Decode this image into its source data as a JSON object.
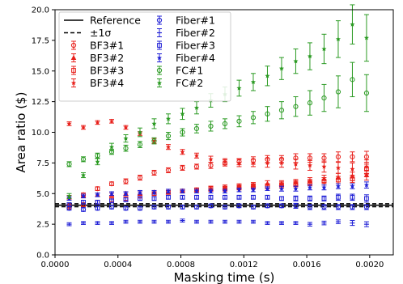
{
  "chart_data": {
    "type": "scatter",
    "xlabel": "Masking time (s)",
    "ylabel": "Area ratio ($)",
    "xlim": [
      0.0,
      0.00215
    ],
    "ylim": [
      0.0,
      20.0
    ],
    "xticks": [
      "0.0000",
      "0.0004",
      "0.0008",
      "0.0012",
      "0.0016",
      "0.0020"
    ],
    "xtick_values": [
      0.0,
      0.0004,
      0.0008,
      0.0012,
      0.0016,
      0.002
    ],
    "yticks": [
      "0.0",
      "2.5",
      "5.0",
      "7.5",
      "10.0",
      "12.5",
      "15.0",
      "17.5",
      "20.0"
    ],
    "ytick_values": [
      0.0,
      2.5,
      5.0,
      7.5,
      10.0,
      12.5,
      15.0,
      17.5,
      20.0
    ],
    "x": [
      9e-05,
      0.00018,
      0.00027,
      0.00036,
      0.00045,
      0.00054,
      0.00063,
      0.00072,
      0.00081,
      0.0009,
      0.00099,
      0.00108,
      0.00117,
      0.00126,
      0.00135,
      0.00144,
      0.00153,
      0.00162,
      0.00171,
      0.0018,
      0.00189,
      0.00198
    ],
    "reference": {
      "label": "Reference",
      "value": 4.05,
      "sigma_label": "±1σ",
      "sigma": 0.12
    },
    "series": [
      {
        "name": "BF3#1",
        "color": "#e8211c",
        "marker": "circle",
        "values": [
          4.0,
          4.9,
          5.4,
          5.8,
          6.0,
          6.3,
          6.7,
          6.9,
          7.1,
          7.2,
          7.3,
          7.5,
          7.6,
          7.7,
          7.8,
          7.8,
          7.9,
          7.9,
          7.9,
          8.0,
          8.0,
          8.0
        ],
        "errors": [
          0.15,
          0.15,
          0.15,
          0.15,
          0.2,
          0.2,
          0.2,
          0.2,
          0.2,
          0.2,
          0.25,
          0.25,
          0.25,
          0.3,
          0.3,
          0.3,
          0.35,
          0.35,
          0.35,
          0.4,
          0.4,
          0.45
        ]
      },
      {
        "name": "BF3#2",
        "color": "#e8211c",
        "marker": "triangle",
        "values": [
          4.7,
          4.8,
          4.9,
          4.9,
          5.0,
          5.0,
          5.1,
          5.1,
          5.2,
          5.3,
          5.4,
          5.5,
          5.6,
          5.7,
          5.8,
          5.8,
          5.9,
          6.0,
          6.2,
          6.3,
          6.4,
          6.5
        ],
        "errors": [
          0.15,
          0.15,
          0.15,
          0.15,
          0.15,
          0.15,
          0.15,
          0.15,
          0.15,
          0.15,
          0.2,
          0.2,
          0.2,
          0.2,
          0.25,
          0.25,
          0.25,
          0.3,
          0.3,
          0.35,
          0.35,
          0.4
        ]
      },
      {
        "name": "BF3#3",
        "color": "#e8211c",
        "marker": "square",
        "values": [
          3.9,
          4.1,
          4.3,
          4.5,
          4.6,
          4.8,
          5.0,
          5.1,
          5.2,
          5.3,
          5.4,
          5.4,
          5.5,
          5.6,
          5.6,
          5.7,
          5.8,
          5.9,
          6.0,
          6.1,
          6.2,
          7.0
        ],
        "errors": [
          0.15,
          0.15,
          0.15,
          0.15,
          0.15,
          0.15,
          0.15,
          0.15,
          0.15,
          0.15,
          0.2,
          0.2,
          0.2,
          0.2,
          0.2,
          0.25,
          0.25,
          0.25,
          0.3,
          0.3,
          0.3,
          0.4
        ]
      },
      {
        "name": "BF3#4",
        "color": "#e8211c",
        "marker": "star",
        "values": [
          10.7,
          10.4,
          10.8,
          10.9,
          10.4,
          9.9,
          9.3,
          8.8,
          8.4,
          8.1,
          7.8,
          7.6,
          7.5,
          7.5,
          7.5,
          7.5,
          7.4,
          7.3,
          7.2,
          7.1,
          7.0,
          7.2
        ],
        "errors": [
          0.15,
          0.15,
          0.15,
          0.15,
          0.15,
          0.15,
          0.2,
          0.2,
          0.2,
          0.2,
          0.25,
          0.25,
          0.3,
          0.3,
          0.35,
          0.35,
          0.4,
          0.4,
          0.45,
          0.45,
          0.5,
          0.55
        ]
      },
      {
        "name": "Fiber#1",
        "color": "#1f1fd6",
        "marker": "circle",
        "values": [
          3.8,
          3.7,
          3.8,
          3.9,
          3.8,
          3.8,
          3.9,
          3.9,
          3.9,
          3.9,
          4.0,
          3.9,
          4.0,
          3.9,
          4.0,
          4.0,
          4.0,
          3.9,
          3.9,
          3.9,
          3.9,
          3.9
        ],
        "errors": [
          0.15,
          0.15,
          0.15,
          0.15,
          0.15,
          0.15,
          0.15,
          0.15,
          0.15,
          0.15,
          0.15,
          0.15,
          0.15,
          0.15,
          0.15,
          0.15,
          0.2,
          0.2,
          0.2,
          0.2,
          0.2,
          0.2
        ]
      },
      {
        "name": "Fiber#2",
        "color": "#1f1fd6",
        "marker": "line",
        "values": [
          2.5,
          2.6,
          2.6,
          2.6,
          2.7,
          2.7,
          2.7,
          2.7,
          2.8,
          2.7,
          2.7,
          2.7,
          2.7,
          2.7,
          2.6,
          2.6,
          2.6,
          2.5,
          2.6,
          2.7,
          2.6,
          2.5
        ],
        "errors": [
          0.12,
          0.12,
          0.12,
          0.12,
          0.12,
          0.12,
          0.12,
          0.12,
          0.12,
          0.12,
          0.12,
          0.12,
          0.12,
          0.12,
          0.12,
          0.12,
          0.12,
          0.15,
          0.15,
          0.15,
          0.2,
          0.2
        ]
      },
      {
        "name": "Fiber#3",
        "color": "#1f1fd6",
        "marker": "square",
        "values": [
          4.1,
          4.3,
          4.3,
          4.4,
          4.5,
          4.6,
          4.6,
          4.7,
          4.7,
          4.7,
          4.7,
          4.7,
          4.7,
          4.7,
          4.7,
          4.6,
          4.6,
          4.6,
          4.6,
          4.7,
          4.7,
          4.6
        ],
        "errors": [
          0.15,
          0.15,
          0.15,
          0.15,
          0.15,
          0.15,
          0.15,
          0.15,
          0.15,
          0.15,
          0.15,
          0.15,
          0.15,
          0.15,
          0.15,
          0.15,
          0.2,
          0.2,
          0.2,
          0.25,
          0.25,
          0.3
        ]
      },
      {
        "name": "Fiber#4",
        "color": "#1f1fd6",
        "marker": "star",
        "values": [
          4.6,
          4.8,
          4.9,
          5.0,
          5.0,
          5.1,
          5.1,
          5.2,
          5.2,
          5.2,
          5.2,
          5.2,
          5.3,
          5.3,
          5.4,
          5.4,
          5.4,
          5.5,
          5.5,
          5.6,
          5.6,
          5.7
        ],
        "errors": [
          0.15,
          0.15,
          0.15,
          0.15,
          0.15,
          0.15,
          0.15,
          0.15,
          0.15,
          0.15,
          0.15,
          0.15,
          0.15,
          0.15,
          0.15,
          0.2,
          0.2,
          0.2,
          0.2,
          0.2,
          0.2,
          0.25
        ]
      },
      {
        "name": "FC#1",
        "color": "#2a9a22",
        "marker": "circle",
        "values": [
          7.4,
          7.8,
          8.1,
          8.4,
          8.7,
          9.0,
          9.3,
          9.7,
          10.0,
          10.3,
          10.5,
          10.7,
          10.9,
          11.2,
          11.5,
          11.8,
          12.1,
          12.4,
          12.8,
          13.3,
          14.3,
          13.2
        ],
        "errors": [
          0.2,
          0.2,
          0.2,
          0.2,
          0.25,
          0.25,
          0.25,
          0.3,
          0.3,
          0.35,
          0.4,
          0.4,
          0.45,
          0.5,
          0.6,
          0.7,
          0.8,
          1.0,
          1.1,
          1.3,
          1.4,
          1.5
        ]
      },
      {
        "name": "FC#2",
        "color": "#2a9a22",
        "marker": "star",
        "values": [
          4.8,
          6.5,
          7.6,
          8.8,
          9.5,
          10.0,
          10.7,
          11.1,
          11.5,
          12.0,
          12.6,
          13.1,
          13.6,
          14.1,
          14.6,
          15.2,
          15.8,
          16.2,
          16.8,
          17.6,
          18.8,
          17.7
        ],
        "errors": [
          0.2,
          0.2,
          0.25,
          0.3,
          0.3,
          0.35,
          0.4,
          0.4,
          0.45,
          0.5,
          0.55,
          0.6,
          0.65,
          0.7,
          0.8,
          0.9,
          1.0,
          1.1,
          1.2,
          1.5,
          1.6,
          1.9
        ]
      }
    ]
  }
}
